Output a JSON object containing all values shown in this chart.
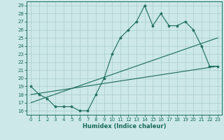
{
  "xlabel": "Humidex (Indice chaleur)",
  "bg_color": "#cce8e8",
  "line_color": "#1a6b5a",
  "grid_color": "#aacccc",
  "xlim": [
    -0.5,
    23.5
  ],
  "ylim": [
    15.5,
    29.5
  ],
  "yticks": [
    16,
    17,
    18,
    19,
    20,
    21,
    22,
    23,
    24,
    25,
    26,
    27,
    28,
    29
  ],
  "xticks": [
    0,
    1,
    2,
    3,
    4,
    5,
    6,
    7,
    8,
    9,
    10,
    11,
    12,
    13,
    14,
    15,
    16,
    17,
    18,
    19,
    20,
    21,
    22,
    23
  ],
  "series1_x": [
    0,
    1,
    2,
    3,
    4,
    5,
    6,
    7,
    8,
    9,
    10,
    11,
    12,
    13,
    14,
    15,
    16,
    17,
    18,
    19,
    20,
    21,
    22,
    23
  ],
  "series1_y": [
    19,
    18,
    17.5,
    16.5,
    16.5,
    16.5,
    16,
    16,
    18,
    20,
    23,
    25,
    26,
    27,
    29,
    26.5,
    28,
    26.5,
    26.5,
    27,
    26,
    24,
    21.5,
    21.5
  ],
  "series2_x": [
    0,
    23
  ],
  "series2_y": [
    18,
    21.5
  ],
  "series3_x": [
    0,
    23
  ],
  "series3_y": [
    17,
    25
  ]
}
